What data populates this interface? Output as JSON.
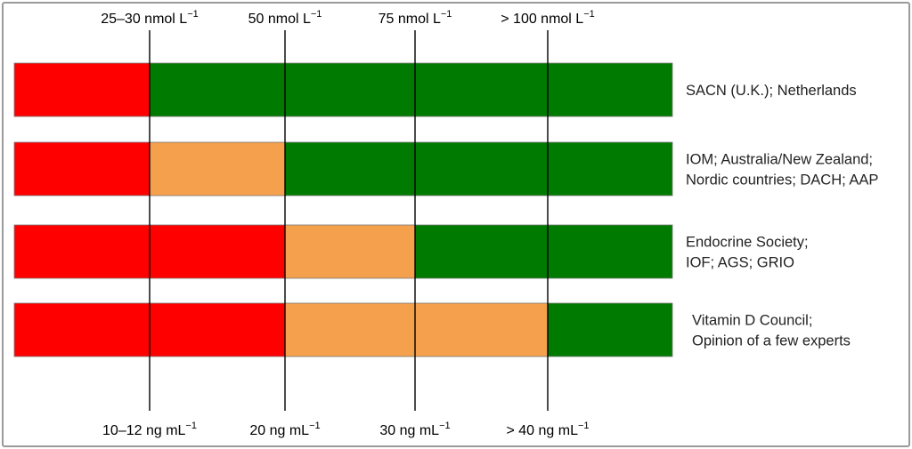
{
  "colors": {
    "deficient": "#ff0000",
    "insufficient": "#f4a04c",
    "sufficient": "#007a00"
  },
  "thresholds": [
    {
      "top": "25–30 nmol L",
      "top_sup": "−1",
      "bottom": "10–12 ng mL",
      "bottom_sup": "−1"
    },
    {
      "top": "50 nmol L",
      "top_sup": "−1",
      "bottom": "20 ng mL",
      "bottom_sup": "−1"
    },
    {
      "top": "75 nmol L",
      "top_sup": "−1",
      "bottom": "30 ng mL",
      "bottom_sup": "−1"
    },
    {
      "top": "> 100 nmol L",
      "top_sup": "−1",
      "bottom": "> 40 ng mL",
      "bottom_sup": "−1"
    }
  ],
  "rows": [
    {
      "segments": [
        "deficient",
        "sufficient",
        "sufficient",
        "sufficient",
        "sufficient"
      ],
      "label_lines": [
        "SACN (U.K.); Netherlands"
      ]
    },
    {
      "segments": [
        "deficient",
        "insufficient",
        "sufficient",
        "sufficient",
        "sufficient"
      ],
      "label_lines": [
        "IOM; Australia/New Zealand;",
        "Nordic countries; DACH; AAP"
      ]
    },
    {
      "segments": [
        "deficient",
        "deficient",
        "insufficient",
        "sufficient",
        "sufficient"
      ],
      "label_lines": [
        "Endocrine Society;",
        "IOF; AGS; GRIO"
      ]
    },
    {
      "segments": [
        "deficient",
        "deficient",
        "insufficient",
        "insufficient",
        "sufficient"
      ],
      "label_lines": [
        "Vitamin D Council;",
        "Opinion of a few experts"
      ]
    }
  ]
}
